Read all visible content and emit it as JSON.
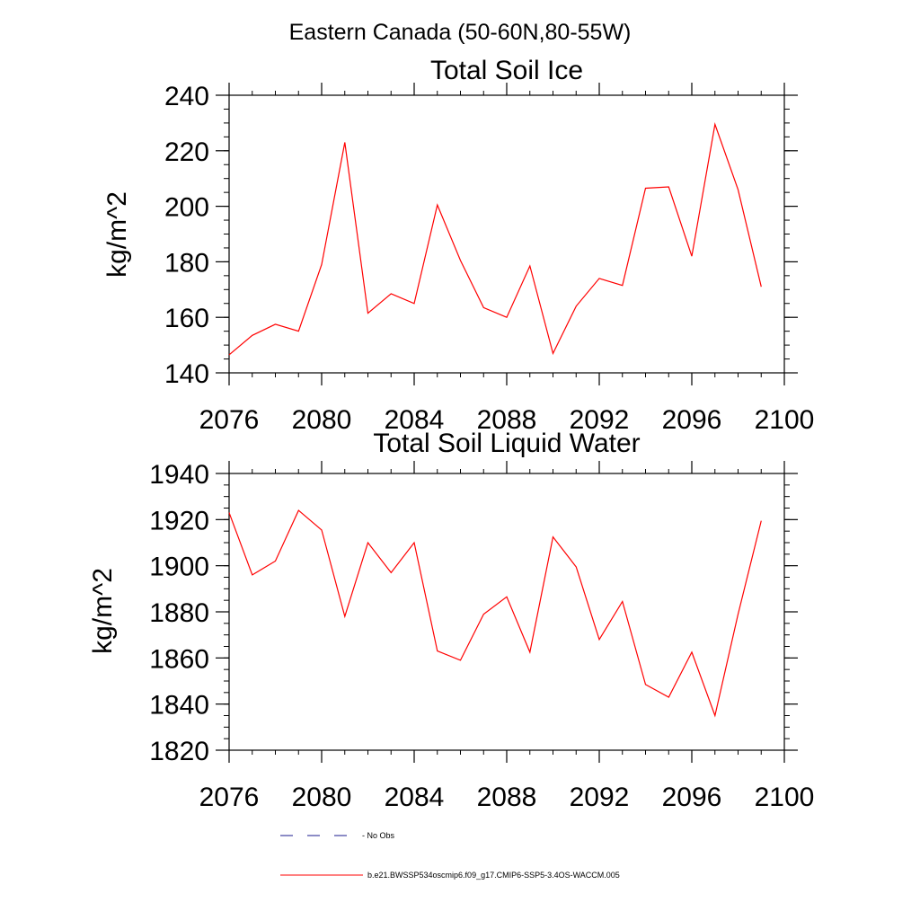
{
  "figure_title": "Eastern Canada (50-60N,80-55W)",
  "colors": {
    "model_line": "#ff0000",
    "obs_line": "#1a1a8c",
    "axis": "#000000"
  },
  "chart_data": [
    {
      "type": "line",
      "title": "Total Soil Ice",
      "xlabel": "",
      "ylabel": "kg/m^2",
      "xlim": [
        2076,
        2100
      ],
      "ylim": [
        140,
        240
      ],
      "x_ticks": [
        2076,
        2080,
        2084,
        2088,
        2092,
        2096,
        2100
      ],
      "y_ticks": [
        140,
        160,
        180,
        200,
        220,
        240
      ],
      "x_minor_step": 1,
      "y_minor_step": 5,
      "grid": false,
      "series": [
        {
          "name": "b.e21.BWSSP534oscmip6.f09_g17.CMIP6-SSP5-3.4OS-WACCM.005",
          "x": [
            2076,
            2077,
            2078,
            2079,
            2080,
            2081,
            2082,
            2083,
            2084,
            2085,
            2086,
            2087,
            2088,
            2089,
            2090,
            2091,
            2092,
            2093,
            2094,
            2095,
            2096,
            2097,
            2098,
            2099
          ],
          "values": [
            146.5,
            153.5,
            157.5,
            155,
            179,
            223,
            161.5,
            168.5,
            165,
            200.5,
            180.5,
            163.5,
            160,
            178.5,
            147,
            164,
            174,
            171.5,
            206.5,
            207,
            182,
            229.5,
            206,
            171
          ]
        }
      ]
    },
    {
      "type": "line",
      "title": "Total Soil Liquid Water",
      "xlabel": "",
      "ylabel": "kg/m^2",
      "xlim": [
        2076,
        2100
      ],
      "ylim": [
        1820,
        1940
      ],
      "x_ticks": [
        2076,
        2080,
        2084,
        2088,
        2092,
        2096,
        2100
      ],
      "y_ticks": [
        1820,
        1840,
        1860,
        1880,
        1900,
        1920,
        1940
      ],
      "x_minor_step": 1,
      "y_minor_step": 5,
      "grid": false,
      "series": [
        {
          "name": "b.e21.BWSSP534oscmip6.f09_g17.CMIP6-SSP5-3.4OS-WACCM.005",
          "x": [
            2076,
            2077,
            2078,
            2079,
            2080,
            2081,
            2082,
            2083,
            2084,
            2085,
            2086,
            2087,
            2088,
            2089,
            2090,
            2091,
            2092,
            2093,
            2094,
            2095,
            2096,
            2097,
            2098,
            2099
          ],
          "values": [
            1923,
            1896,
            1902,
            1924,
            1915.5,
            1878,
            1910,
            1897,
            1910,
            1863,
            1859,
            1879,
            1886.5,
            1862.5,
            1912.5,
            1899.5,
            1868,
            1884.5,
            1848.5,
            1843,
            1862.5,
            1835,
            1879,
            1919.5
          ]
        }
      ]
    }
  ],
  "legend": {
    "items": [
      {
        "label": "- No Obs",
        "style": "dashed",
        "color": "#1a1a8c"
      },
      {
        "label": "b.e21.BWSSP534oscmip6.f09_g17.CMIP6-SSP5-3.4OS-WACCM.005",
        "style": "solid",
        "color": "#ff0000"
      }
    ]
  }
}
